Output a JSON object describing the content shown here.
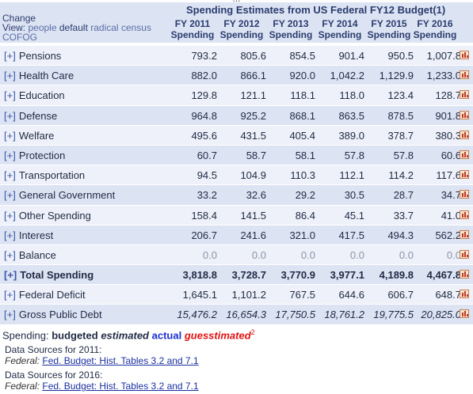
{
  "title": "Spending Estimates from US Federal FY12 Budget(1)",
  "change_label": "Change",
  "view": {
    "prefix": "View:",
    "options": [
      "people",
      "default",
      "radical",
      "census",
      "COFOG"
    ],
    "current": "default"
  },
  "columns": [
    {
      "year": "FY 2011",
      "label": "Spending"
    },
    {
      "year": "FY 2012",
      "label": "Spending"
    },
    {
      "year": "FY 2013",
      "label": "Spending"
    },
    {
      "year": "FY 2014",
      "label": "Spending"
    },
    {
      "year": "FY 2015",
      "label": "Spending"
    },
    {
      "year": "FY 2016",
      "label": "Spending"
    }
  ],
  "expand_symbol": "[+]",
  "rows": [
    {
      "label": "Pensions",
      "values": [
        "793.2",
        "805.6",
        "854.5",
        "901.4",
        "950.5",
        "1,007.8"
      ]
    },
    {
      "label": "Health Care",
      "values": [
        "882.0",
        "866.1",
        "920.0",
        "1,042.2",
        "1,129.9",
        "1,233.0"
      ]
    },
    {
      "label": "Education",
      "values": [
        "129.8",
        "121.1",
        "118.1",
        "118.0",
        "123.4",
        "128.7"
      ]
    },
    {
      "label": "Defense",
      "values": [
        "964.8",
        "925.2",
        "868.1",
        "863.5",
        "878.5",
        "901.8"
      ]
    },
    {
      "label": "Welfare",
      "values": [
        "495.6",
        "431.5",
        "405.4",
        "389.0",
        "378.7",
        "380.3"
      ]
    },
    {
      "label": "Protection",
      "values": [
        "60.7",
        "58.7",
        "58.1",
        "57.8",
        "57.8",
        "60.6"
      ]
    },
    {
      "label": "Transportation",
      "values": [
        "94.5",
        "104.9",
        "110.3",
        "112.1",
        "114.2",
        "117.6"
      ]
    },
    {
      "label": "General Government",
      "values": [
        "33.2",
        "32.6",
        "29.2",
        "30.5",
        "28.7",
        "34.7"
      ]
    },
    {
      "label": "Other Spending",
      "values": [
        "158.4",
        "141.5",
        "86.4",
        "45.1",
        "33.7",
        "41.0"
      ]
    },
    {
      "label": "Interest",
      "values": [
        "206.7",
        "241.6",
        "321.0",
        "417.5",
        "494.3",
        "562.2"
      ]
    },
    {
      "label": "Balance",
      "values": [
        "0.0",
        "0.0",
        "0.0",
        "0.0",
        "0.0",
        "0.0"
      ]
    },
    {
      "label": "Total Spending",
      "values": [
        "3,818.8",
        "3,728.7",
        "3,770.9",
        "3,977.1",
        "4,189.8",
        "4,467.8"
      ]
    },
    {
      "label": "Federal Deficit",
      "values": [
        "1,645.1",
        "1,101.2",
        "767.5",
        "644.6",
        "606.7",
        "648.7"
      ]
    },
    {
      "label": "Gross Public Debt",
      "values": [
        "15,476.2",
        "16,654.3",
        "17,750.5",
        "18,761.2",
        "19,775.5",
        "20,825.0"
      ]
    }
  ],
  "legend": {
    "prefix": "Spending:",
    "budgeted": "budgeted",
    "estimated": "estimated",
    "actual": "actual",
    "guesstimated": "guesstimated",
    "footnote": "2"
  },
  "sources": [
    {
      "heading": "Data Sources for 2011:",
      "label": "Federal:",
      "link": "Fed. Budget: Hist. Tables 3.2 and 7.1"
    },
    {
      "heading": "Data Sources for 2016:",
      "label": "Federal:",
      "link": "Fed. Budget: Hist. Tables 3.2 and 7.1"
    }
  ],
  "colors": {
    "header_bg": "#dce3f3",
    "row_light": "#eef1f9",
    "row_dark": "#dce3f3",
    "actual": "#1a2fd0",
    "guesstimated": "#e01010",
    "link": "#1a2fa0"
  }
}
